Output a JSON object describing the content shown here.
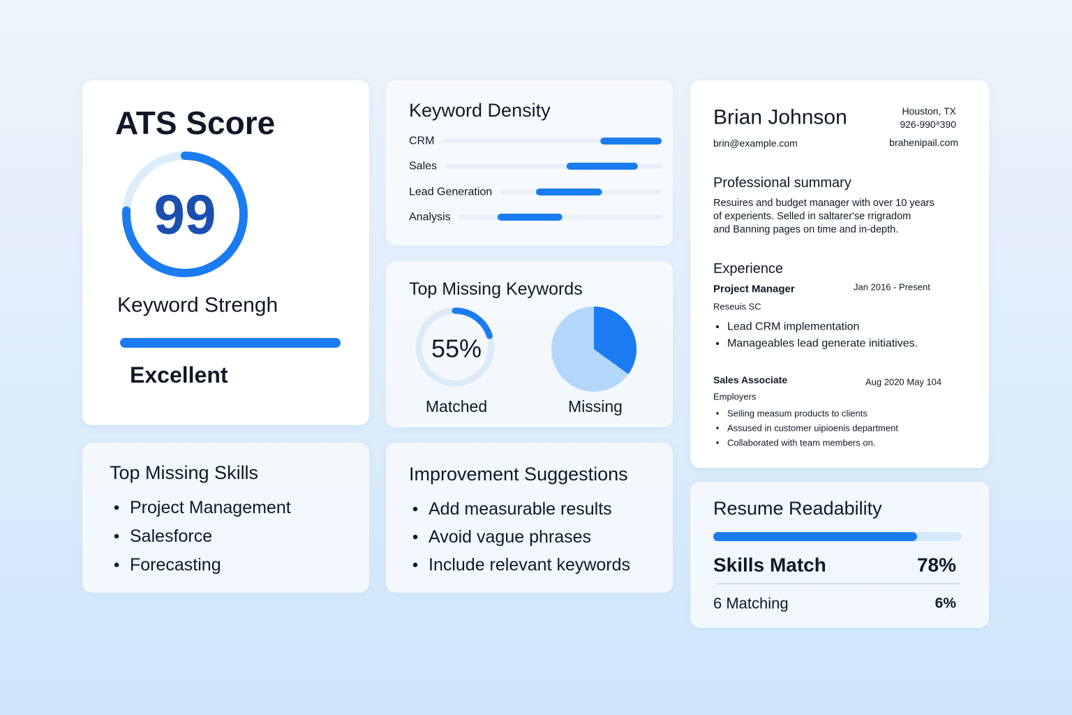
{
  "ats": {
    "title": "ATS Score",
    "score": "99",
    "ring_percent": 76,
    "strength_label": "Keyword Strengh",
    "strength_percent": 100,
    "rating": "Excellent"
  },
  "keyword_density": {
    "title": "Keyword Density",
    "keywords": [
      {
        "name": "CRM",
        "start": 72,
        "end": 100
      },
      {
        "name": "Sales",
        "start": 56,
        "end": 89
      },
      {
        "name": "Lead Generation",
        "start": 22,
        "end": 63
      },
      {
        "name": "Analysis",
        "start": 19,
        "end": 51
      }
    ]
  },
  "missing_keywords": {
    "title": "Top Missing Keywords",
    "matched_value": "55%",
    "matched_label": "Matched",
    "matched_arc_percent": 20,
    "missing_label": "Missing",
    "missing_slice_percent": 35
  },
  "missing_skills": {
    "title": "Top Missing Skills",
    "items": [
      "Project Management",
      "Salesforce",
      "Forecasting"
    ]
  },
  "suggestions": {
    "title": "Improvement Suggestions",
    "items": [
      "Add measurable results",
      "Avoid vague phrases",
      "Include relevant keywords"
    ]
  },
  "resume": {
    "name": "Brian Johnson",
    "location": "Houston, TX",
    "phone": "926-990⁸390",
    "email": "brin@example.com",
    "website": "brahenipail.com",
    "summary_title": "Professional summary",
    "summary_lines": [
      "Resuires and budget manager with over 10 years",
      "of experients.  Selled in saltarer'se rrigradom",
      "and Banning pages on time and in-depth."
    ],
    "experience_title": "Experience",
    "jobs": [
      {
        "role": "Project Manager",
        "dates": "Jan 2016 - Present",
        "company": "Reseuis SC",
        "bullets": [
          "Lead CRM implementation",
          "Manageables lead generate initiatives."
        ]
      },
      {
        "role": "Sales Associate",
        "dates": "Aug 2020  May 104",
        "company": "Employers",
        "bullets": [
          "Seiling measum products to clients",
          "Assused in customer uipioenis department",
          "Collaborated with team members on."
        ]
      }
    ]
  },
  "readability": {
    "title": "Resume Readability",
    "bar_percent": 82,
    "skills_label": "Skills Match",
    "skills_value": "78%",
    "matching_label": "6 Matching",
    "matching_value": "6%"
  }
}
